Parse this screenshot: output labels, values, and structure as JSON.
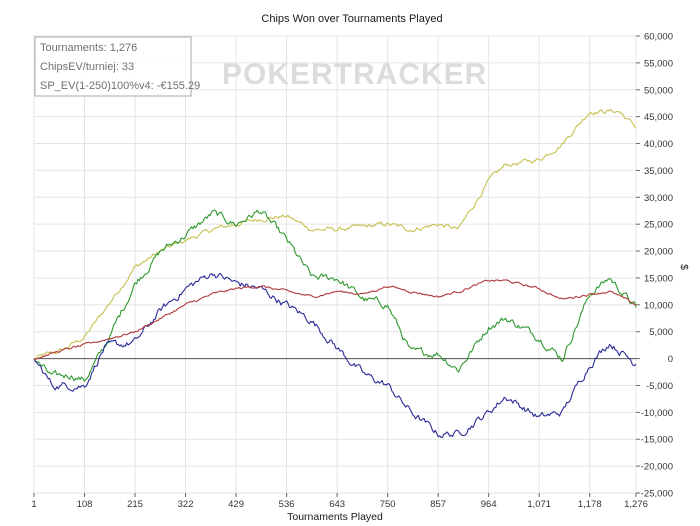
{
  "chart_data": {
    "type": "line",
    "title": "Chips Won over Tournaments Played",
    "xlabel": "Tournaments Played",
    "ylabel": "$",
    "xlim": [
      1,
      1276
    ],
    "ylim": [
      -25000,
      60000
    ],
    "x_ticks": [
      "1",
      "108",
      "215",
      "322",
      "429",
      "536",
      "643",
      "750",
      "857",
      "964",
      "1,071",
      "1,178",
      "1,276"
    ],
    "y_ticks": [
      60000,
      55000,
      50000,
      45000,
      40000,
      35000,
      30000,
      25000,
      20000,
      15000,
      10000,
      5000,
      0,
      -5000,
      -10000,
      -15000,
      -20000,
      -25000
    ],
    "y_tick_labels": [
      "60,000",
      "55,000",
      "50,000",
      "45,000",
      "40,000",
      "35,000",
      "30,000",
      "25,000",
      "20,000",
      "15,000",
      "10,000",
      "5,000",
      "0",
      "-5,000",
      "-10,000",
      "-15,000",
      "-20,000",
      "-25,000"
    ],
    "grid": true,
    "watermark": "POKERTRACKER",
    "legend": {
      "position": "top-left",
      "lines": [
        "Tournaments: 1,276",
        "ChipsEV/turniej: 33",
        "SP_EV(1-250)100%v4: -€155.29"
      ]
    },
    "series": [
      {
        "color": "#c6c14f",
        "x": [
          1,
          60,
          108,
          150,
          215,
          270,
          322,
          380,
          429,
          480,
          536,
          590,
          643,
          700,
          750,
          800,
          857,
          900,
          964,
          1000,
          1071,
          1120,
          1178,
          1240,
          1276
        ],
        "values": [
          0,
          1500,
          4000,
          9000,
          17000,
          20000,
          22000,
          24000,
          25000,
          26000,
          26500,
          24000,
          24000,
          24500,
          25000,
          24000,
          25000,
          24000,
          33000,
          36000,
          37000,
          40000,
          46000,
          46000,
          43000
        ]
      },
      {
        "color": "#2f9a2f",
        "x": [
          1,
          40,
          80,
          108,
          150,
          215,
          270,
          322,
          380,
          429,
          480,
          536,
          590,
          643,
          700,
          750,
          800,
          857,
          900,
          964,
          1000,
          1071,
          1120,
          1178,
          1220,
          1276
        ],
        "values": [
          0,
          -3500,
          -3000,
          -4000,
          2000,
          14000,
          20000,
          23000,
          27000,
          25000,
          27500,
          22000,
          15000,
          15000,
          11000,
          10000,
          1000,
          1000,
          -2000,
          6000,
          7500,
          4000,
          0,
          12000,
          15000,
          9500
        ]
      },
      {
        "color": "#2b2b9a",
        "x": [
          1,
          40,
          80,
          108,
          150,
          215,
          270,
          322,
          380,
          429,
          480,
          536,
          590,
          643,
          700,
          750,
          800,
          857,
          900,
          964,
          1000,
          1071,
          1120,
          1178,
          1220,
          1276
        ],
        "values": [
          0,
          -5000,
          -5000,
          -5000,
          2000,
          3000,
          9000,
          13000,
          16000,
          14000,
          13000,
          10000,
          7000,
          2000,
          -3000,
          -5000,
          -10000,
          -14000,
          -14000,
          -10000,
          -7000,
          -11000,
          -10000,
          -1000,
          3000,
          -1000
        ]
      },
      {
        "color": "#b03a3a",
        "x": [
          1,
          60,
          108,
          150,
          215,
          270,
          322,
          380,
          429,
          480,
          536,
          590,
          643,
          700,
          750,
          800,
          857,
          900,
          964,
          1000,
          1071,
          1120,
          1178,
          1220,
          1276
        ],
        "values": [
          0,
          1500,
          2500,
          3500,
          5000,
          7500,
          10000,
          12000,
          13000,
          13500,
          12500,
          11500,
          12500,
          12000,
          13500,
          12500,
          11500,
          12500,
          14500,
          14500,
          13000,
          11000,
          12000,
          12500,
          10000
        ]
      }
    ]
  }
}
